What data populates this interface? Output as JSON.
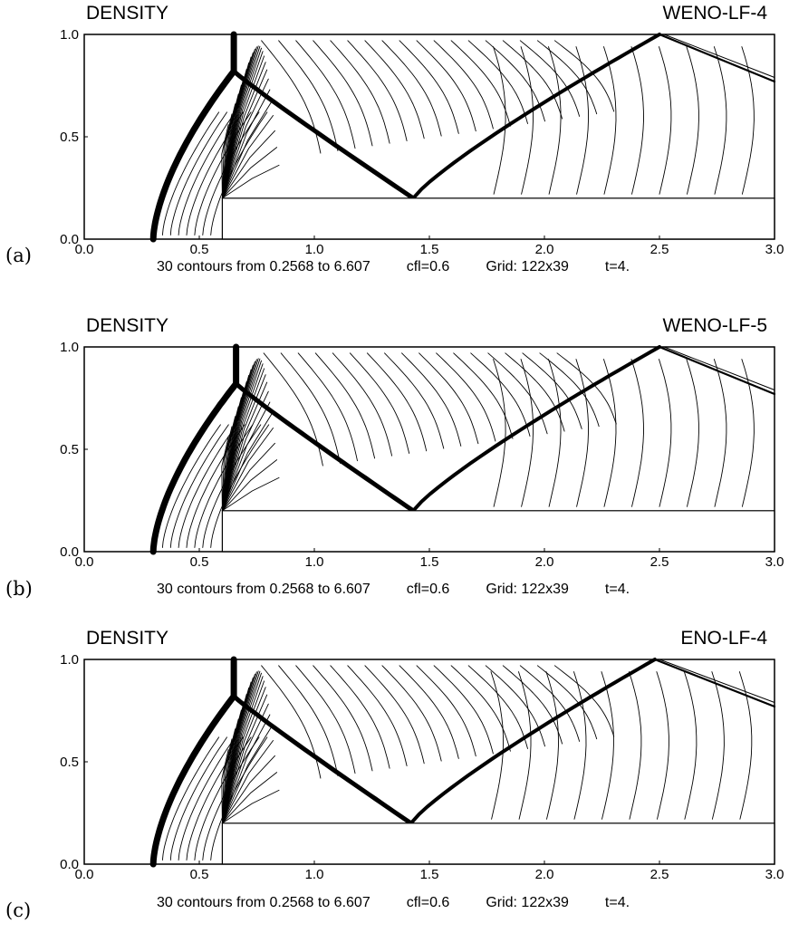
{
  "panels": [
    {
      "letter": "(a)",
      "title": "DENSITY",
      "method": "WENO-LF-4",
      "caption": {
        "contours": "30 contours  from  0.2568  to  6.607",
        "cfl": "cfl=0.6",
        "grid": "Grid: 122x39",
        "time": "t=4."
      },
      "x_ticks": [
        "0.0",
        "0.5",
        "1.0",
        "1.5",
        "2.0",
        "2.5",
        "3.0"
      ],
      "y_ticks": [
        "0.0",
        "0.5",
        "1.0"
      ]
    },
    {
      "letter": "(b)",
      "title": "DENSITY",
      "method": "WENO-LF-5",
      "caption": {
        "contours": "30 contours  from  0.2568  to  6.607",
        "cfl": "cfl=0.6",
        "grid": "Grid: 122x39",
        "time": "t=4."
      },
      "x_ticks": [
        "0.0",
        "0.5",
        "1.0",
        "1.5",
        "2.0",
        "2.5",
        "3.0"
      ],
      "y_ticks": [
        "0.0",
        "0.5",
        "1.0"
      ]
    },
    {
      "letter": "(c)",
      "title": "DENSITY",
      "method": "ENO-LF-4",
      "caption": {
        "contours": "30 contours  from  0.2568  to  6.607",
        "cfl": "cfl=0.6",
        "grid": "Grid: 122x39",
        "time": "t=4."
      },
      "x_ticks": [
        "0.0",
        "0.5",
        "1.0",
        "1.5",
        "2.0",
        "2.5",
        "3.0"
      ],
      "y_ticks": [
        "0.0",
        "0.5",
        "1.0"
      ]
    }
  ],
  "chart_data": [
    {
      "type": "contour",
      "title": "DENSITY",
      "label": "WENO-LF-4",
      "xlim": [
        0.0,
        3.0
      ],
      "ylim": [
        0.0,
        1.0
      ],
      "step": {
        "x_start": 0.6,
        "height": 0.2
      },
      "levels": {
        "count": 30,
        "min": 0.2568,
        "max": 6.607
      },
      "shock_feet": {
        "bow_shock_x": 0.3,
        "mach_stem_x": 0.65,
        "reflection_x": 1.43,
        "wall_reflection_x": 2.5
      }
    },
    {
      "type": "contour",
      "title": "DENSITY",
      "label": "WENO-LF-5",
      "xlim": [
        0.0,
        3.0
      ],
      "ylim": [
        0.0,
        1.0
      ],
      "step": {
        "x_start": 0.6,
        "height": 0.2
      },
      "levels": {
        "count": 30,
        "min": 0.2568,
        "max": 6.607
      },
      "shock_feet": {
        "bow_shock_x": 0.3,
        "mach_stem_x": 0.66,
        "reflection_x": 1.43,
        "wall_reflection_x": 2.5
      }
    },
    {
      "type": "contour",
      "title": "DENSITY",
      "label": "ENO-LF-4",
      "xlim": [
        0.0,
        3.0
      ],
      "ylim": [
        0.0,
        1.0
      ],
      "step": {
        "x_start": 0.6,
        "height": 0.2
      },
      "levels": {
        "count": 30,
        "min": 0.2568,
        "max": 6.607
      },
      "shock_feet": {
        "bow_shock_x": 0.3,
        "mach_stem_x": 0.65,
        "reflection_x": 1.42,
        "wall_reflection_x": 2.48
      }
    }
  ]
}
